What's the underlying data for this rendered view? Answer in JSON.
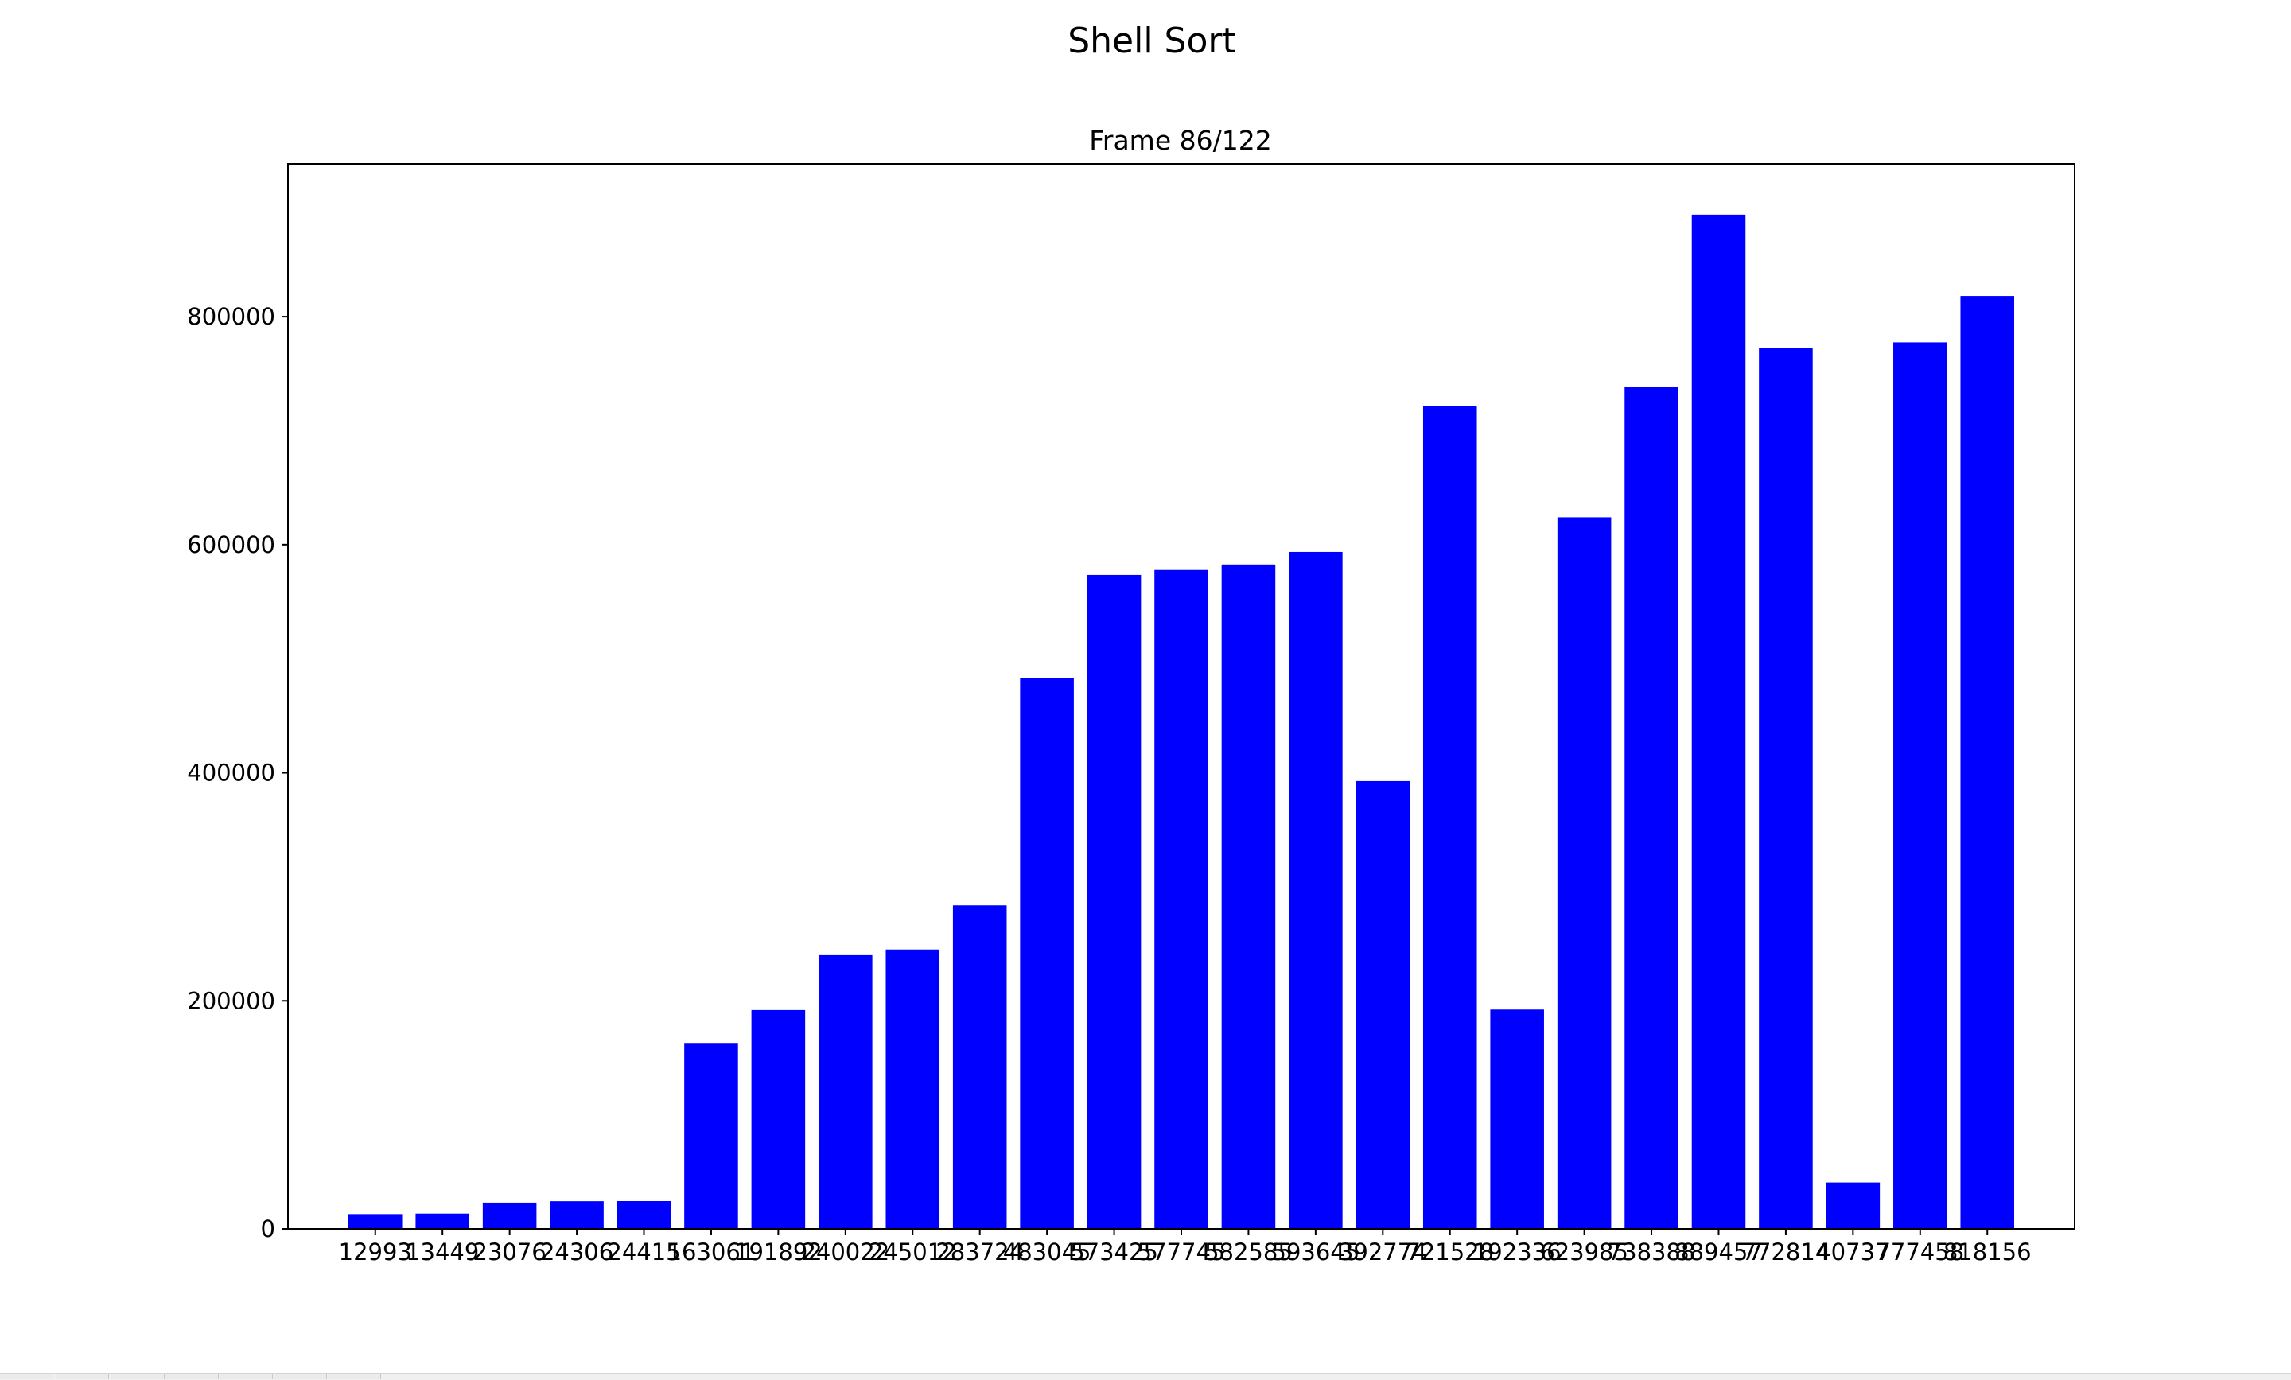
{
  "figure": {
    "suptitle": "Shell Sort"
  },
  "chart_data": {
    "type": "bar",
    "title": "Frame 86/122",
    "xlabel": "",
    "ylabel": "",
    "categories": [
      "12993",
      "13449",
      "23076",
      "24306",
      "24415",
      "163061",
      "191892",
      "240022",
      "245012",
      "283724",
      "483045",
      "573425",
      "577745",
      "582585",
      "593645",
      "392774",
      "721528",
      "192336",
      "623985",
      "738388",
      "889457",
      "772814",
      "40737",
      "777458",
      "818156"
    ],
    "values": [
      12993,
      13449,
      23076,
      24306,
      24415,
      163061,
      191892,
      240022,
      245012,
      283724,
      483045,
      573425,
      577745,
      582585,
      593645,
      392774,
      721528,
      192336,
      623985,
      738388,
      889457,
      772814,
      40737,
      777458,
      818156
    ],
    "ylim": [
      0,
      934000
    ],
    "yticks": [
      0,
      200000,
      400000,
      600000,
      800000
    ],
    "ytick_labels": [
      "0",
      "200000",
      "400000",
      "600000",
      "800000"
    ],
    "bar_color": "#0000ff",
    "grid": false,
    "legend": "none"
  }
}
